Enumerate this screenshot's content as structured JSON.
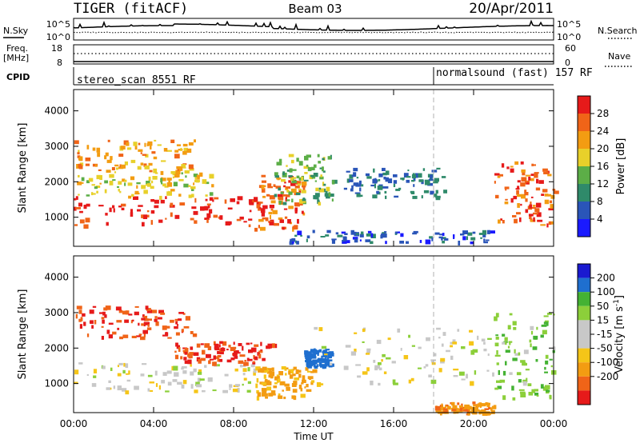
{
  "header": {
    "radar": "TIGER (fitACF)",
    "beam": "Beam 03",
    "date": "20/Apr/2011"
  },
  "nsky_panel": {
    "left_label": "N.Sky",
    "right_label": "N.Search",
    "left_ticks": [
      "10^5",
      "10^0"
    ],
    "right_ticks": [
      "10^5",
      "10^0"
    ]
  },
  "freq_panel": {
    "left_label_line1": "Freq.",
    "left_label_line2": "[MHz]",
    "right_label": "Nave",
    "left_ticks": [
      "18",
      "8"
    ],
    "right_ticks": [
      "60",
      "0"
    ]
  },
  "cpid_panel": {
    "label": "CPID",
    "segments": [
      {
        "name": "stereo_scan 8551 RF",
        "start_hour": 0
      },
      {
        "name": "normalsound (fast) 157 RF",
        "start_hour": 18
      }
    ]
  },
  "x_axis": {
    "label": "Time UT",
    "tick_labels": [
      "00:00",
      "04:00",
      "08:00",
      "12:00",
      "16:00",
      "20:00",
      "00:00"
    ],
    "range_hours": [
      0,
      24
    ]
  },
  "colors": {
    "power_scale": [
      "#1a1aff",
      "#2a55b8",
      "#2f8a6a",
      "#5cae47",
      "#e8d02a",
      "#f39c12",
      "#f06418",
      "#e61a1a"
    ],
    "velocity_scale": [
      "#e61a1a",
      "#f06418",
      "#f39c12",
      "#f5c518",
      "#c8c8c8",
      "#c8c8c8",
      "#8ccf3a",
      "#44b233",
      "#1f6fcf",
      "#1a1ad0"
    ]
  },
  "chart_data": [
    {
      "type": "heatmap",
      "title": "",
      "xlabel": "",
      "ylabel": "Slant Range [km]",
      "xlim": [
        0,
        24
      ],
      "ylim": [
        180,
        4600
      ],
      "y_ticks": [
        1000,
        2000,
        3000,
        4000
      ],
      "colorbar": {
        "label": "Power [dB]",
        "range": [
          0,
          32
        ],
        "ticks": [
          4,
          8,
          12,
          16,
          20,
          24,
          28
        ]
      },
      "regions": [
        {
          "t": [
            0,
            9.5
          ],
          "r": [
            800,
            1600
          ],
          "power": 30
        },
        {
          "t": [
            0,
            7
          ],
          "r": [
            1600,
            2300
          ],
          "power": 18
        },
        {
          "t": [
            0,
            6
          ],
          "r": [
            2300,
            3200
          ],
          "power": 22
        },
        {
          "t": [
            9,
            11.5
          ],
          "r": [
            600,
            2200
          ],
          "power": 26
        },
        {
          "t": [
            10,
            13
          ],
          "r": [
            1400,
            2800
          ],
          "power": 14
        },
        {
          "t": [
            13.5,
            18.5
          ],
          "r": [
            1600,
            2400
          ],
          "power": 8
        },
        {
          "t": [
            10.5,
            21
          ],
          "r": [
            300,
            650
          ],
          "power": 6
        },
        {
          "t": [
            21,
            24
          ],
          "r": [
            800,
            2600
          ],
          "power": 26
        }
      ]
    },
    {
      "type": "heatmap",
      "title": "",
      "xlabel": "Time UT",
      "ylabel": "Slant Range [km]",
      "xlim": [
        0,
        24
      ],
      "ylim": [
        180,
        4600
      ],
      "y_ticks": [
        1000,
        2000,
        3000,
        4000
      ],
      "colorbar": {
        "label": "Velocity [m s^-1]",
        "ticks": [
          "200",
          "100",
          "50",
          "15",
          "-15",
          "-50",
          "-100",
          "-200"
        ]
      },
      "regions": [
        {
          "t": [
            0,
            9
          ],
          "r": [
            800,
            1600
          ],
          "velocity": 0
        },
        {
          "t": [
            0,
            6
          ],
          "r": [
            2300,
            3200
          ],
          "velocity": -200
        },
        {
          "t": [
            5,
            10
          ],
          "r": [
            1600,
            2200
          ],
          "velocity": -200
        },
        {
          "t": [
            9,
            12
          ],
          "r": [
            600,
            1500
          ],
          "velocity": -60
        },
        {
          "t": [
            11.5,
            12.8
          ],
          "r": [
            1500,
            2000
          ],
          "velocity": 150
        },
        {
          "t": [
            12,
            21
          ],
          "r": [
            1000,
            2600
          ],
          "velocity": 0
        },
        {
          "t": [
            18,
            21
          ],
          "r": [
            150,
            500
          ],
          "velocity": -80
        },
        {
          "t": [
            21,
            24
          ],
          "r": [
            600,
            3000
          ],
          "velocity": 40
        }
      ]
    }
  ]
}
